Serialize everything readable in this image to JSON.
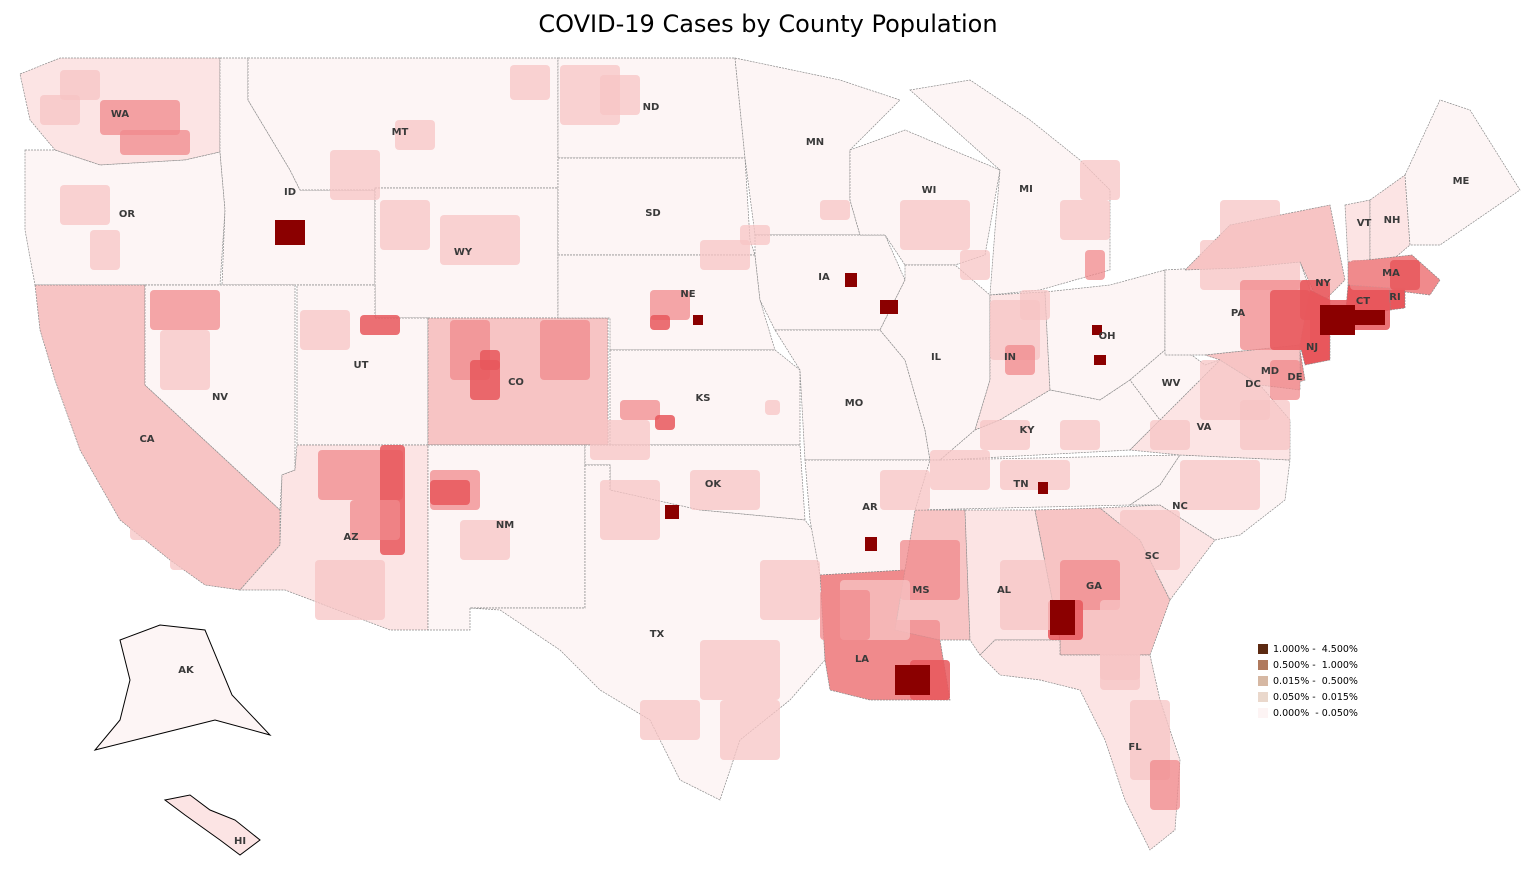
{
  "title": "COVID-19 Cases by County Population",
  "legend": [
    {
      "label": "1.000% -  4.500%",
      "color": "#5c2a12"
    },
    {
      "label": "0.500% -  1.000%",
      "color": "#b07a5e"
    },
    {
      "label": "0.015% -  0.500%",
      "color": "#d6b8a3"
    },
    {
      "label": "0.050% -  0.015%",
      "color": "#ead8cc"
    },
    {
      "label": "0.000%  - 0.050%",
      "color": "#fdf4f4"
    }
  ],
  "states": [
    "WA",
    "OR",
    "CA",
    "ID",
    "NV",
    "MT",
    "WY",
    "UT",
    "AZ",
    "CO",
    "NM",
    "ND",
    "SD",
    "NE",
    "KS",
    "OK",
    "TX",
    "MN",
    "IA",
    "MO",
    "AR",
    "LA",
    "WI",
    "IL",
    "MI",
    "IN",
    "OH",
    "KY",
    "TN",
    "MS",
    "AL",
    "GA",
    "FL",
    "SC",
    "NC",
    "VA",
    "WV",
    "PA",
    "NY",
    "VT",
    "NH",
    "ME",
    "MA",
    "CT",
    "RI",
    "NJ",
    "DE",
    "MD",
    "DC",
    "AK",
    "HI"
  ],
  "fill_colors": {
    "dark": "#8b0000",
    "red": "#e8575c",
    "medium": "#f08a8c",
    "light": "#f7c4c4",
    "pale": "#fce4e4",
    "base": "#fdf5f5",
    "borders": "#8a8a8a"
  }
}
